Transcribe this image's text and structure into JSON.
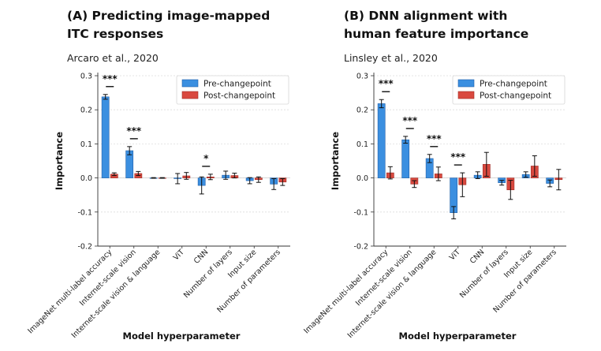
{
  "colors": {
    "pre": "#3b8fe0",
    "pre_edge": "#1f5fa8",
    "post": "#d9493f",
    "post_edge": "#9e2b24"
  },
  "chart_data": [
    {
      "type": "bar",
      "title_lines": [
        "(A) Predicting image-mapped",
        "ITC responses"
      ],
      "subtitle": "Arcaro et al., 2020",
      "xlabel": "Model hyperparameter",
      "ylabel": "Importance",
      "ylim": [
        -0.2,
        0.3
      ],
      "yticks": [
        "-0.2",
        "-0.1",
        "0.0",
        "0.1",
        "0.2",
        "0.3"
      ],
      "categories": [
        "ImageNet multi-label accuracy",
        "Internet-scale vision",
        "Internet-scale vision & language",
        "ViT",
        "CNN",
        "Number of layers",
        "Input size",
        "Number of parameters"
      ],
      "series": [
        {
          "name": "Pre-changepoint",
          "values": [
            0.238,
            0.08,
            0.0,
            -0.002,
            -0.022,
            0.008,
            -0.008,
            -0.018
          ],
          "errors": [
            0.007,
            0.012,
            0.001,
            0.015,
            0.025,
            0.012,
            0.009,
            0.016
          ]
        },
        {
          "name": "Post-changepoint",
          "values": [
            0.011,
            0.013,
            0.0,
            0.006,
            0.003,
            0.007,
            -0.005,
            -0.012
          ],
          "errors": [
            0.004,
            0.006,
            0.001,
            0.01,
            0.008,
            0.007,
            0.008,
            0.01
          ]
        }
      ],
      "significance": [
        {
          "category": 0,
          "label": "***"
        },
        {
          "category": 1,
          "label": "***"
        },
        {
          "category": 4,
          "label": "*"
        }
      ],
      "legend": "top-right"
    },
    {
      "type": "bar",
      "title_lines": [
        "(B) DNN alignment with",
        "human feature importance"
      ],
      "subtitle": "Linsley et al., 2020",
      "xlabel": "Model hyperparameter",
      "ylabel": "Importance",
      "ylim": [
        -0.2,
        0.3
      ],
      "yticks": [
        "-0.2",
        "-0.1",
        "0.0",
        "0.1",
        "0.2",
        "0.3"
      ],
      "categories": [
        "ImageNet multi-label accuracy",
        "Internet-scale vision",
        "Internet-scale vision & language",
        "ViT",
        "CNN",
        "Number of layers",
        "Input size",
        "Number of parameters"
      ],
      "series": [
        {
          "name": "Pre-changepoint",
          "values": [
            0.218,
            0.112,
            0.057,
            -0.102,
            0.008,
            -0.014,
            0.01,
            -0.016
          ],
          "errors": [
            0.012,
            0.01,
            0.012,
            0.018,
            0.01,
            0.007,
            0.008,
            0.01
          ]
        },
        {
          "name": "Post-changepoint",
          "values": [
            0.015,
            -0.018,
            0.012,
            -0.02,
            0.04,
            -0.035,
            0.035,
            -0.005
          ],
          "errors": [
            0.018,
            0.01,
            0.02,
            0.035,
            0.035,
            0.028,
            0.03,
            0.03
          ]
        }
      ],
      "significance": [
        {
          "category": 0,
          "label": "***"
        },
        {
          "category": 1,
          "label": "***"
        },
        {
          "category": 2,
          "label": "***"
        },
        {
          "category": 3,
          "label": "***"
        }
      ],
      "legend": "top-right"
    }
  ]
}
